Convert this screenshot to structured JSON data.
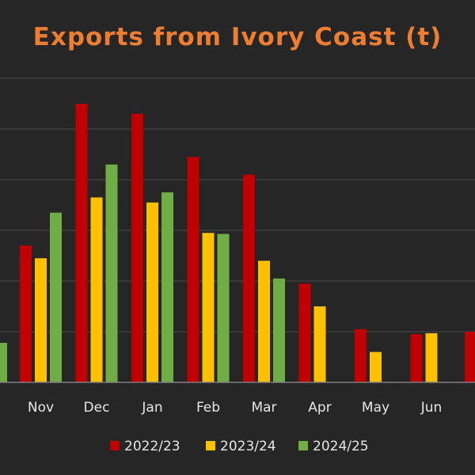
{
  "chart_data": {
    "type": "bar",
    "title": "Exports from Ivory Coast (t)",
    "xlabel": "",
    "ylabel": "",
    "categories": [
      "Nov",
      "Dec",
      "Jan",
      "Feb",
      "Mar",
      "Apr",
      "May",
      "Jun"
    ],
    "series": [
      {
        "name": "2022/23",
        "color": "#c00000",
        "values": [
          2.7,
          5.5,
          5.3,
          4.45,
          4.1,
          1.95,
          1.05,
          0.95
        ]
      },
      {
        "name": "2023/24",
        "color": "#ffc000",
        "values": [
          2.45,
          3.65,
          3.55,
          2.95,
          2.4,
          1.5,
          0.6,
          0.97
        ]
      },
      {
        "name": "2024/25",
        "color": "#70ad47",
        "values": [
          3.35,
          4.3,
          3.75,
          2.93,
          2.05,
          null,
          null,
          null
        ]
      }
    ],
    "ylim": [
      0,
      6
    ],
    "grid": true,
    "legend": "bottom",
    "title_color": "#ed7d31"
  }
}
